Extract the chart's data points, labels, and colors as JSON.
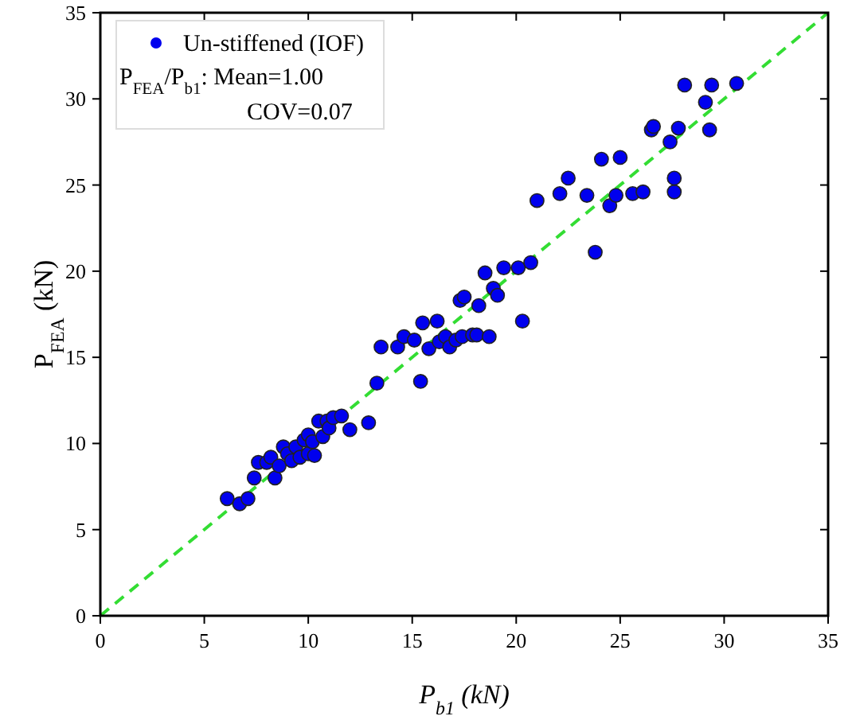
{
  "chart_data": {
    "type": "scatter",
    "xlabel": "P$_{b1}$ (kN)",
    "ylabel": "P$_{FEA}$ (kN)",
    "xlim": [
      0,
      35
    ],
    "ylim": [
      0,
      35
    ],
    "xticks": [
      0,
      5,
      10,
      15,
      20,
      25,
      30,
      35
    ],
    "yticks": [
      0,
      5,
      10,
      15,
      20,
      25,
      30,
      35
    ],
    "grid": false,
    "legend": "top left",
    "marker": "circle",
    "annotations": [
      "P$_{FEA}$/P$_{b1}$: Mean=1.00",
      "COV=0.07"
    ],
    "series": [
      {
        "name": "Un-stiffened (IOF)",
        "color": "#0000ee",
        "x": [
          6.1,
          6.7,
          7.1,
          7.4,
          7.6,
          8.0,
          8.2,
          8.4,
          8.6,
          8.8,
          9.0,
          9.2,
          9.4,
          9.6,
          9.8,
          10.0,
          10.0,
          10.2,
          10.3,
          10.5,
          10.7,
          10.9,
          11.0,
          11.2,
          11.6,
          12.0,
          12.9,
          13.3,
          13.5,
          14.3,
          14.6,
          15.1,
          15.4,
          15.5,
          15.8,
          16.2,
          16.3,
          16.6,
          16.8,
          17.1,
          17.3,
          17.4,
          17.5,
          17.9,
          18.1,
          18.2,
          18.5,
          18.7,
          18.9,
          19.1,
          19.4,
          20.1,
          20.3,
          20.7,
          21.0,
          22.1,
          22.5,
          23.4,
          23.8,
          24.1,
          24.5,
          24.8,
          25.0,
          25.6,
          26.1,
          26.5,
          26.6,
          27.4,
          27.6,
          27.6,
          27.8,
          28.1,
          29.1,
          29.3,
          29.4,
          30.6
        ],
        "values": [
          6.8,
          6.5,
          6.8,
          8.0,
          8.9,
          8.9,
          9.2,
          8.0,
          8.7,
          9.8,
          9.4,
          9.0,
          9.8,
          9.2,
          10.2,
          9.4,
          10.5,
          10.1,
          9.3,
          11.3,
          10.4,
          11.3,
          10.9,
          11.5,
          11.6,
          10.8,
          11.2,
          13.5,
          15.6,
          15.6,
          16.2,
          16.0,
          13.6,
          17.0,
          15.5,
          17.1,
          15.9,
          16.2,
          15.6,
          16.0,
          18.3,
          16.2,
          18.5,
          16.3,
          16.3,
          18.0,
          19.9,
          16.2,
          19.0,
          18.6,
          20.2,
          20.2,
          17.1,
          20.5,
          24.1,
          24.5,
          25.4,
          24.4,
          21.1,
          26.5,
          23.8,
          24.4,
          26.6,
          24.5,
          24.6,
          28.2,
          28.4,
          27.5,
          24.6,
          25.4,
          28.3,
          30.8,
          29.8,
          28.2,
          30.8,
          30.9
        ]
      },
      {
        "type": "line",
        "color": "#33dd33",
        "line_style": "dashed",
        "marker": "none",
        "x": [
          0,
          35
        ],
        "values": [
          0,
          35
        ]
      }
    ]
  }
}
